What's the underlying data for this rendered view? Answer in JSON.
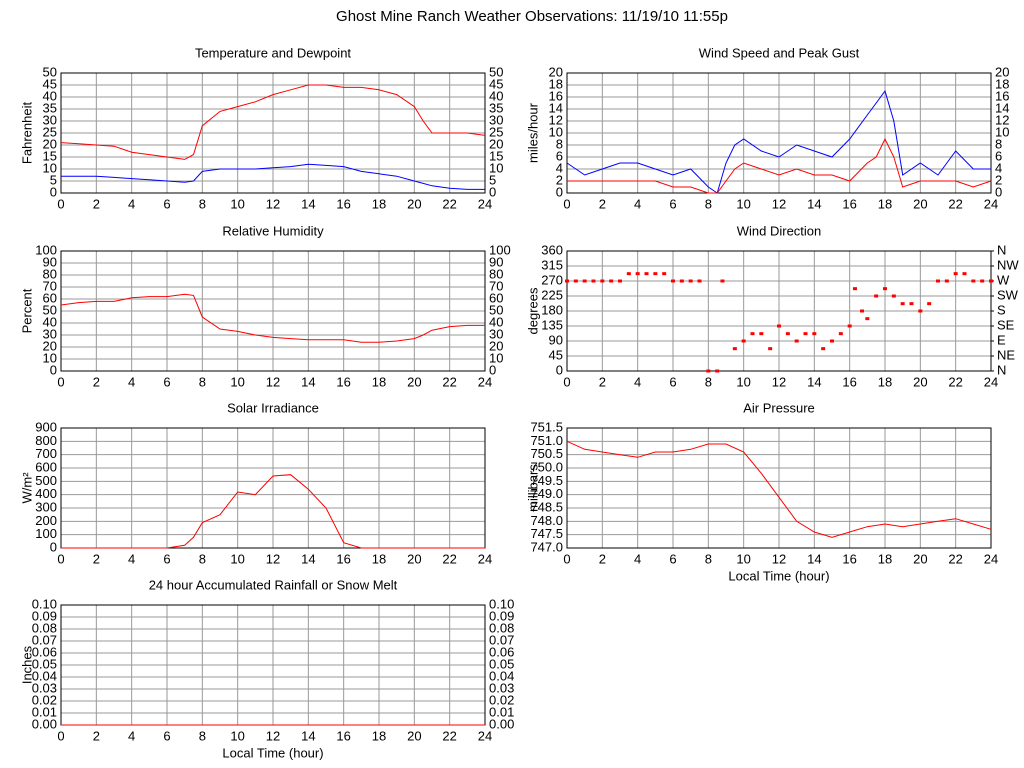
{
  "title": "Ghost Mine Ranch Weather Observations: 11/19/10 11:55p",
  "chart_data": [
    {
      "type": "line",
      "title": "Temperature and Dewpoint",
      "ylabel": "Fahrenheit",
      "mirror_yticks": true,
      "grid": true,
      "x": [
        0,
        1,
        2,
        3,
        4,
        5,
        6,
        7,
        7.5,
        8,
        9,
        10,
        11,
        12,
        13,
        14,
        15,
        16,
        17,
        18,
        19,
        20,
        20.5,
        21,
        22,
        23,
        24
      ],
      "series": [
        {
          "color": "#ff0000",
          "values": [
            21,
            20.5,
            20,
            19.5,
            17,
            16,
            15,
            14,
            16,
            28,
            34,
            36,
            38,
            41,
            43,
            45,
            45,
            44,
            44,
            43,
            41,
            36,
            30,
            25,
            25,
            25,
            24
          ]
        },
        {
          "color": "#0000ff",
          "values": [
            7,
            7,
            7,
            6.5,
            6,
            5.5,
            5,
            4.5,
            5,
            9,
            10,
            10,
            10,
            10.5,
            11,
            12,
            11.5,
            11,
            9,
            8,
            7,
            5,
            4,
            3,
            2,
            1.5,
            1.5
          ]
        }
      ],
      "xlim": [
        0,
        24
      ],
      "xticks": [
        0,
        2,
        4,
        6,
        8,
        10,
        12,
        14,
        16,
        18,
        20,
        22,
        24
      ],
      "ylim": [
        0,
        50
      ],
      "yticks": [
        0,
        5,
        10,
        15,
        20,
        25,
        30,
        35,
        40,
        45,
        50
      ]
    },
    {
      "type": "line",
      "title": "Wind Speed and Peak Gust",
      "ylabel": "miles/hour",
      "mirror_yticks": true,
      "grid": true,
      "x": [
        0,
        1,
        2,
        3,
        4,
        5,
        6,
        7,
        8,
        8.5,
        9,
        9.5,
        10,
        11,
        12,
        13,
        14,
        15,
        16,
        17,
        17.5,
        18,
        18.5,
        19,
        20,
        21,
        22,
        23,
        24
      ],
      "series": [
        {
          "color": "#0000ff",
          "values": [
            5,
            3,
            4,
            5,
            5,
            4,
            3,
            4,
            1,
            0,
            5,
            8,
            9,
            7,
            6,
            8,
            7,
            6,
            9,
            13,
            15,
            17,
            12,
            3,
            5,
            3,
            7,
            4,
            4
          ]
        },
        {
          "color": "#ff0000",
          "values": [
            2,
            2,
            2,
            2,
            2,
            2,
            1,
            1,
            0,
            0,
            2,
            4,
            5,
            4,
            3,
            4,
            3,
            3,
            2,
            5,
            6,
            9,
            6,
            1,
            2,
            2,
            2,
            1,
            2
          ]
        }
      ],
      "xlim": [
        0,
        24
      ],
      "xticks": [
        0,
        2,
        4,
        6,
        8,
        10,
        12,
        14,
        16,
        18,
        20,
        22,
        24
      ],
      "ylim": [
        0,
        20
      ],
      "yticks": [
        0,
        2,
        4,
        6,
        8,
        10,
        12,
        14,
        16,
        18,
        20
      ]
    },
    {
      "type": "line",
      "title": "Relative Humidity",
      "ylabel": "Percent",
      "mirror_yticks": true,
      "grid": true,
      "x": [
        0,
        1,
        2,
        3,
        4,
        5,
        6,
        7,
        7.5,
        8,
        9,
        10,
        11,
        12,
        13,
        14,
        15,
        16,
        17,
        18,
        19,
        20,
        20.5,
        21,
        22,
        23,
        24
      ],
      "series": [
        {
          "color": "#ff0000",
          "values": [
            55,
            57,
            58,
            58,
            61,
            62,
            62,
            64,
            63,
            45,
            35,
            33,
            30,
            28,
            27,
            26,
            26,
            26,
            24,
            24,
            25,
            27,
            30,
            34,
            37,
            38,
            38
          ]
        }
      ],
      "xlim": [
        0,
        24
      ],
      "xticks": [
        0,
        2,
        4,
        6,
        8,
        10,
        12,
        14,
        16,
        18,
        20,
        22,
        24
      ],
      "ylim": [
        0,
        100
      ],
      "yticks": [
        0,
        10,
        20,
        30,
        40,
        50,
        60,
        70,
        80,
        90,
        100
      ]
    },
    {
      "type": "scatter",
      "title": "Wind Direction",
      "ylabel": "degrees",
      "grid": true,
      "x": [
        0,
        0.5,
        1,
        1.5,
        2,
        2.5,
        3,
        3.5,
        4,
        4.5,
        5,
        5.5,
        6,
        6.5,
        7,
        7.5,
        8,
        8.5,
        8.8,
        9.5,
        10,
        10.5,
        11,
        11.5,
        12,
        12.5,
        13,
        13.5,
        14,
        14.5,
        15,
        15.5,
        16,
        16.3,
        16.7,
        17,
        17.5,
        18,
        18.5,
        19,
        19.5,
        20,
        20.5,
        21,
        21.5,
        22,
        22.5,
        23,
        23.5,
        24
      ],
      "series": [
        {
          "color": "#ff0000",
          "values": [
            270,
            270,
            270,
            270,
            270,
            270,
            270,
            292,
            292,
            292,
            292,
            292,
            270,
            270,
            270,
            270,
            0,
            0,
            270,
            67,
            90,
            112,
            112,
            67,
            135,
            112,
            90,
            112,
            112,
            67,
            90,
            112,
            135,
            247,
            180,
            157,
            225,
            247,
            225,
            202,
            202,
            180,
            202,
            270,
            270,
            292,
            292,
            270,
            270,
            270
          ]
        }
      ],
      "xlim": [
        0,
        24
      ],
      "xticks": [
        0,
        2,
        4,
        6,
        8,
        10,
        12,
        14,
        16,
        18,
        20,
        22,
        24
      ],
      "ylim": [
        0,
        360
      ],
      "yticks": [
        0,
        45,
        90,
        135,
        180,
        225,
        270,
        315,
        360
      ],
      "y2lim": [
        0,
        360
      ],
      "y2ticks": [
        {
          "value": 0,
          "label": "N"
        },
        {
          "value": 45,
          "label": "NE"
        },
        {
          "value": 90,
          "label": "E"
        },
        {
          "value": 135,
          "label": "SE"
        },
        {
          "value": 180,
          "label": "S"
        },
        {
          "value": 225,
          "label": "SW"
        },
        {
          "value": 270,
          "label": "W"
        },
        {
          "value": 315,
          "label": "NW"
        },
        {
          "value": 360,
          "label": "N"
        }
      ]
    },
    {
      "type": "line",
      "title": "Solar Irradiance",
      "ylabel": "W/m²",
      "grid": true,
      "x": [
        0,
        1,
        2,
        3,
        4,
        5,
        6,
        7,
        7.5,
        8,
        9,
        10,
        11,
        12,
        13,
        14,
        15,
        16,
        17,
        18,
        19,
        20,
        21,
        22,
        23,
        24
      ],
      "series": [
        {
          "color": "#ff0000",
          "values": [
            0,
            0,
            0,
            0,
            0,
            0,
            0,
            20,
            80,
            190,
            250,
            420,
            400,
            540,
            550,
            440,
            300,
            40,
            0,
            0,
            0,
            0,
            0,
            0,
            0,
            0
          ]
        }
      ],
      "xlim": [
        0,
        24
      ],
      "xticks": [
        0,
        2,
        4,
        6,
        8,
        10,
        12,
        14,
        16,
        18,
        20,
        22,
        24
      ],
      "ylim": [
        0,
        900
      ],
      "yticks": [
        0,
        100,
        200,
        300,
        400,
        500,
        600,
        700,
        800,
        900
      ]
    },
    {
      "type": "line",
      "title": "Air Pressure",
      "ylabel": "millibars",
      "xlabel": "Local Time (hour)",
      "grid": true,
      "x": [
        0,
        1,
        2,
        3,
        4,
        5,
        6,
        7,
        8,
        9,
        10,
        11,
        12,
        13,
        14,
        15,
        16,
        17,
        18,
        19,
        20,
        21,
        22,
        23,
        24
      ],
      "series": [
        {
          "color": "#ff0000",
          "values": [
            751.0,
            750.7,
            750.6,
            750.5,
            750.4,
            750.6,
            750.6,
            750.7,
            750.9,
            750.9,
            750.6,
            749.8,
            748.9,
            748.0,
            747.6,
            747.4,
            747.6,
            747.8,
            747.9,
            747.8,
            747.9,
            748.0,
            748.1,
            747.9,
            747.7
          ]
        }
      ],
      "xlim": [
        0,
        24
      ],
      "xticks": [
        0,
        2,
        4,
        6,
        8,
        10,
        12,
        14,
        16,
        18,
        20,
        22,
        24
      ],
      "ylim": [
        747.0,
        751.5
      ],
      "yticks": [
        {
          "value": 747.0,
          "label": "747.0"
        },
        747.5,
        {
          "value": 748.0,
          "label": "748.0"
        },
        748.5,
        {
          "value": 749.0,
          "label": "749.0"
        },
        749.5,
        {
          "value": 750.0,
          "label": "750.0"
        },
        750.5,
        {
          "value": 751.0,
          "label": "751.0"
        },
        751.5
      ]
    },
    {
      "type": "line",
      "title": "24 hour Accumulated Rainfall or Snow Melt",
      "ylabel": "Inches",
      "xlabel": "Local Time (hour)",
      "mirror_yticks": true,
      "grid": true,
      "x": [
        0,
        24
      ],
      "series": [
        {
          "color": "#ff0000",
          "values": [
            0,
            0
          ]
        }
      ],
      "xlim": [
        0,
        24
      ],
      "xticks": [
        0,
        2,
        4,
        6,
        8,
        10,
        12,
        14,
        16,
        18,
        20,
        22,
        24
      ],
      "ylim": [
        0,
        0.1
      ],
      "yticks": [
        {
          "value": 0,
          "label": "0.00"
        },
        {
          "value": 0.01,
          "label": "0.01"
        },
        {
          "value": 0.02,
          "label": "0.02"
        },
        {
          "value": 0.03,
          "label": "0.03"
        },
        {
          "value": 0.04,
          "label": "0.04"
        },
        {
          "value": 0.05,
          "label": "0.05"
        },
        {
          "value": 0.06,
          "label": "0.06"
        },
        {
          "value": 0.07,
          "label": "0.07"
        },
        {
          "value": 0.08,
          "label": "0.08"
        },
        {
          "value": 0.09,
          "label": "0.09"
        },
        {
          "value": 0.1,
          "label": "0.10"
        }
      ]
    }
  ]
}
